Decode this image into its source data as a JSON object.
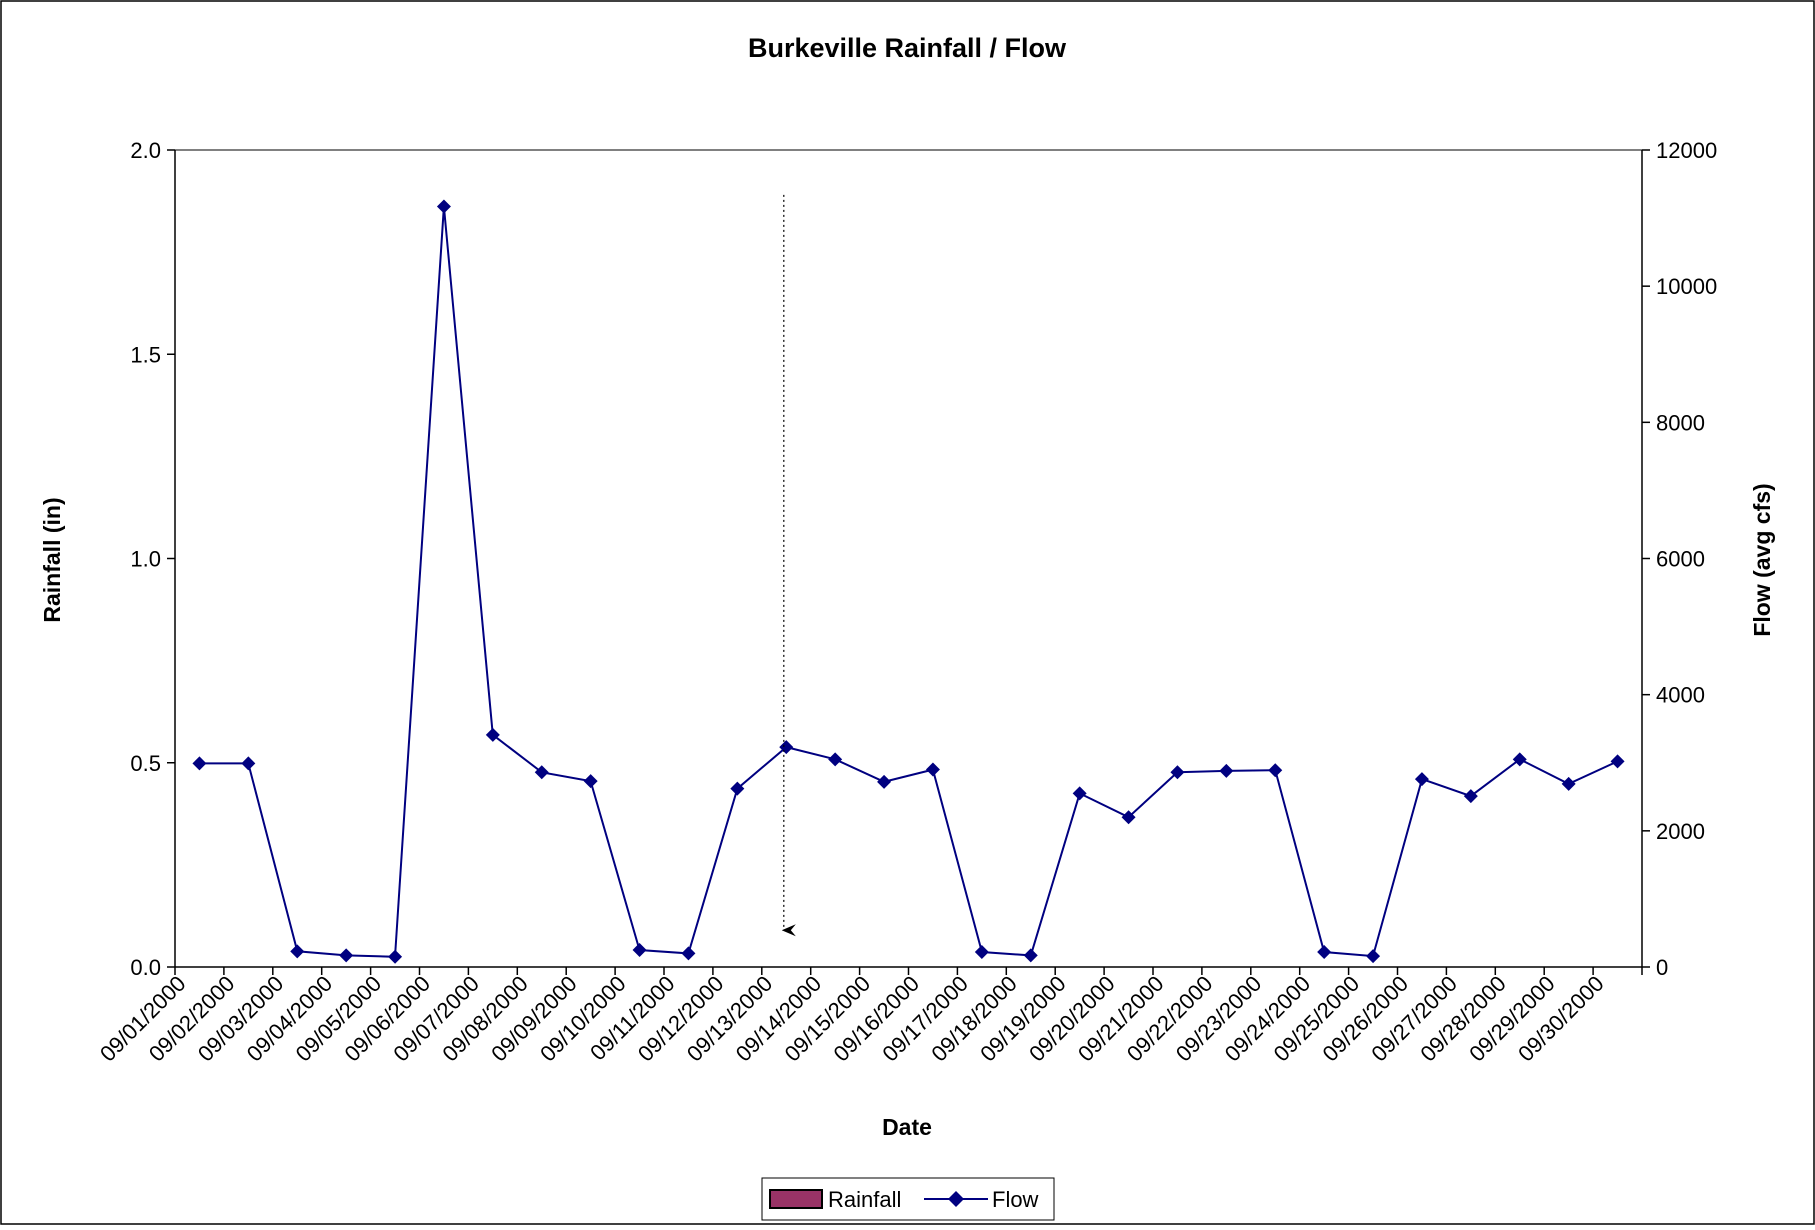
{
  "chart_data": {
    "type": "line",
    "title": "Burkeville Rainfall / Flow",
    "xlabel": "Date",
    "ylabel_left": "Rainfall (in)",
    "ylabel_right": "Flow (avg cfs)",
    "ylim_left": [
      0,
      2.0
    ],
    "ylim_right": [
      0,
      12000
    ],
    "yticks_left": [
      "0.0",
      "0.5",
      "1.0",
      "1.5",
      "2.0"
    ],
    "yticks_right": [
      "0",
      "2000",
      "4000",
      "6000",
      "8000",
      "10000",
      "12000"
    ],
    "grid": false,
    "legend_position": "bottom-center",
    "categories": [
      "09/01/2000",
      "09/02/2000",
      "09/03/2000",
      "09/04/2000",
      "09/05/2000",
      "09/06/2000",
      "09/07/2000",
      "09/08/2000",
      "09/09/2000",
      "09/10/2000",
      "09/11/2000",
      "09/12/2000",
      "09/13/2000",
      "09/14/2000",
      "09/15/2000",
      "09/16/2000",
      "09/17/2000",
      "09/18/2000",
      "09/19/2000",
      "09/20/2000",
      "09/21/2000",
      "09/22/2000",
      "09/23/2000",
      "09/24/2000",
      "09/25/2000",
      "09/26/2000",
      "09/27/2000",
      "09/28/2000",
      "09/29/2000",
      "09/30/2000"
    ],
    "series": [
      {
        "name": "Rainfall",
        "type": "bar",
        "axis": "left",
        "color": "#993366",
        "values": [
          0,
          0,
          0,
          0,
          0,
          0,
          0,
          0,
          0,
          0,
          0,
          0,
          0,
          0,
          0,
          0,
          0,
          0,
          0,
          0,
          0,
          0,
          0,
          0,
          0,
          0,
          0,
          0,
          0,
          0
        ]
      },
      {
        "name": "Flow",
        "type": "line",
        "axis": "right",
        "color": "#000080",
        "marker": "diamond",
        "values": [
          2990,
          2990,
          230,
          170,
          150,
          11170,
          3410,
          2860,
          2730,
          250,
          200,
          2620,
          3230,
          3050,
          2720,
          2900,
          220,
          170,
          2550,
          2200,
          2860,
          2880,
          2890,
          220,
          160,
          2760,
          2510,
          3050,
          2690,
          3020
        ]
      }
    ],
    "annotation": {
      "type": "dashed-arrow",
      "category": "09/13/2000",
      "from_value_left": 1.89,
      "to_value_left": 0.09
    }
  }
}
